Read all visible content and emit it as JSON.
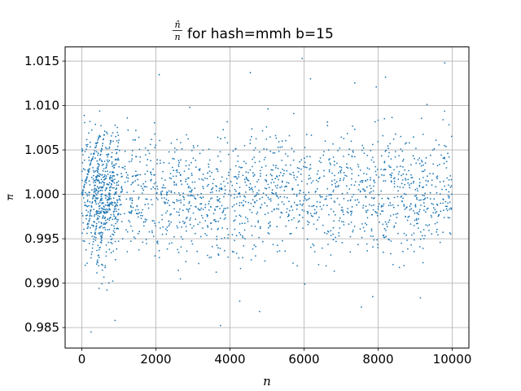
{
  "chart_data": {
    "type": "scatter",
    "title": {
      "fraction_numerator": "n̂",
      "fraction_denominator": "n",
      "text": "for hash=mmh b=15"
    },
    "xlabel": "n",
    "ylabel": "n",
    "xlim": [
      -450,
      10450
    ],
    "ylim": [
      0.9827,
      1.0166
    ],
    "xticks": [
      0,
      2000,
      4000,
      6000,
      8000,
      10000
    ],
    "xtick_labels": [
      "0",
      "2000",
      "4000",
      "6000",
      "8000",
      "10000"
    ],
    "yticks": [
      0.985,
      0.99,
      0.995,
      1.0,
      1.005,
      1.01,
      1.015
    ],
    "ytick_labels": [
      "0.985",
      "0.990",
      "0.995",
      "1.000",
      "1.005",
      "1.010",
      "1.015"
    ],
    "grid": true,
    "marker_color": "#1f77b4",
    "approximate_points": 10000,
    "x_range": [
      0,
      10000
    ],
    "center_value": 1.0,
    "typical_spread": 0.0045,
    "series": [
      {
        "values_sample": [
          [
            100,
            1.0002
          ],
          [
            200,
            1.0015
          ],
          [
            300,
            1.003
          ],
          [
            400,
            1.0048
          ],
          [
            500,
            1.0065
          ],
          [
            5950,
            1.0153
          ],
          [
            9800,
            1.0148
          ],
          [
            7950,
            1.0121
          ],
          [
            8200,
            1.0132
          ],
          [
            4550,
            1.0137
          ],
          [
            250,
            0.9845
          ],
          [
            900,
            0.9858
          ],
          [
            4800,
            0.9868
          ],
          [
            7550,
            0.9873
          ]
        ]
      }
    ],
    "early_sweeps": [
      {
        "x_start": 0,
        "x_end": 480,
        "y_start": 1.0,
        "y_end": 1.0068
      },
      {
        "x_start": 150,
        "x_end": 620,
        "y_start": 0.996,
        "y_end": 1.007
      },
      {
        "x_start": 250,
        "x_end": 800,
        "y_start": 0.993,
        "y_end": 1.0065
      },
      {
        "x_start": 400,
        "x_end": 1000,
        "y_start": 0.992,
        "y_end": 1.006
      }
    ]
  }
}
